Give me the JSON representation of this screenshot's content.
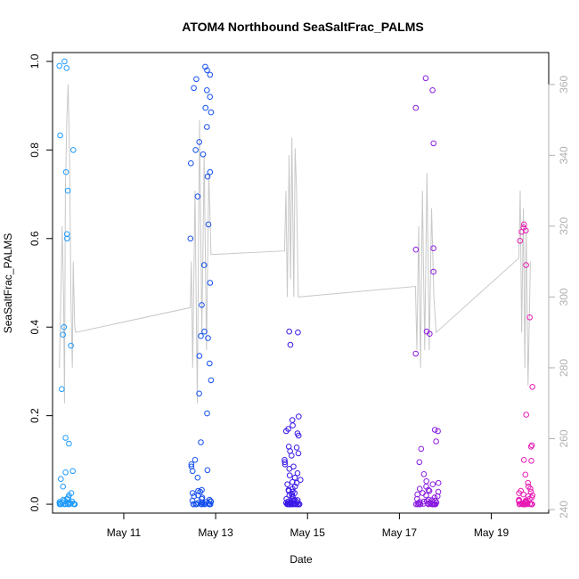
{
  "chart_data": {
    "type": "scatter",
    "title": "ATOM4 Northbound SeaSaltFrac_PALMS",
    "xlabel": "Date",
    "ylabel": "SeaSaltFrac_PALMS",
    "x_unit": "days (May day-of-month)",
    "xlim": [
      9.45,
      20.25
    ],
    "ylim": [
      -0.02,
      1.02
    ],
    "y2lim": [
      239,
      369
    ],
    "x_ticks": [
      11,
      13,
      15,
      17,
      19
    ],
    "x_tick_labels": [
      "May 11",
      "May 13",
      "May 15",
      "May 17",
      "May 19"
    ],
    "y_ticks": [
      0.0,
      0.2,
      0.4,
      0.6,
      0.8,
      1.0
    ],
    "y_tick_labels": [
      "0.0",
      "0.2",
      "0.4",
      "0.6",
      "0.8",
      "1.0"
    ],
    "y2_ticks": [
      240,
      260,
      280,
      300,
      320,
      340,
      360
    ],
    "y2_tick_labels": [
      "240",
      "260",
      "280",
      "300",
      "320",
      "340",
      "360"
    ],
    "flights": [
      {
        "day_start": 9.6,
        "day_end": 9.95,
        "color": "#1E9BFF",
        "fractions": [
          0.99,
          0.985,
          1.0,
          0.833,
          0.8,
          0.75,
          0.708,
          0.61,
          0.6,
          0.4,
          0.383,
          0.358,
          0.26,
          0.15,
          0.137,
          0.075,
          0.072,
          0.057,
          0.04,
          0.025,
          0.02,
          0.015,
          0.012,
          0.01,
          0.008,
          0.006,
          0.005,
          0.004,
          0.003,
          0.002,
          0.002,
          0.001,
          0.001,
          0.0,
          0.0,
          0.0,
          0.0,
          0.0,
          0.0,
          0.0
        ],
        "line": [
          [
            9.6,
            280
          ],
          [
            9.63,
            300
          ],
          [
            9.66,
            320
          ],
          [
            9.69,
            300
          ],
          [
            9.71,
            270
          ],
          [
            9.73,
            330
          ],
          [
            9.76,
            350
          ],
          [
            9.79,
            360
          ],
          [
            9.82,
            340
          ],
          [
            9.85,
            300
          ],
          [
            9.88,
            280
          ],
          [
            9.9,
            310
          ],
          [
            9.93,
            292
          ],
          [
            9.95,
            290
          ],
          [
            12.45,
            297
          ],
          [
            12.47,
            310
          ],
          [
            12.5,
            280
          ],
          [
            12.55,
            330
          ],
          [
            12.6,
            270
          ],
          [
            12.65,
            350
          ],
          [
            12.7,
            290
          ],
          [
            12.75,
            340
          ],
          [
            12.8,
            285
          ],
          [
            12.85,
            335
          ],
          [
            12.9,
            312
          ],
          [
            14.5,
            313
          ],
          [
            14.53,
            330
          ],
          [
            14.56,
            300
          ],
          [
            14.6,
            340
          ],
          [
            14.63,
            305
          ],
          [
            14.66,
            345
          ],
          [
            14.7,
            300
          ],
          [
            14.73,
            342
          ],
          [
            14.76,
            330
          ],
          [
            14.8,
            300
          ],
          [
            17.35,
            303
          ],
          [
            17.38,
            285
          ],
          [
            17.42,
            320
          ],
          [
            17.46,
            280
          ],
          [
            17.5,
            330
          ],
          [
            17.55,
            285
          ],
          [
            17.6,
            335
          ],
          [
            17.65,
            285
          ],
          [
            17.7,
            325
          ],
          [
            17.75,
            300
          ],
          [
            17.8,
            290
          ],
          [
            19.6,
            311
          ],
          [
            19.63,
            330
          ],
          [
            19.66,
            290
          ],
          [
            19.7,
            325
          ],
          [
            19.73,
            280
          ],
          [
            19.76,
            320
          ],
          [
            19.8,
            275
          ],
          [
            19.85,
            310
          ]
        ]
      },
      {
        "day_start": 12.45,
        "day_end": 12.9,
        "color": "#1550F0",
        "fractions": [
          0.988,
          0.98,
          0.97,
          0.96,
          0.94,
          0.935,
          0.92,
          0.895,
          0.885,
          0.852,
          0.818,
          0.8,
          0.79,
          0.77,
          0.75,
          0.74,
          0.695,
          0.632,
          0.6,
          0.54,
          0.5,
          0.45,
          0.39,
          0.38,
          0.375,
          0.335,
          0.318,
          0.28,
          0.25,
          0.205,
          0.14,
          0.1,
          0.09,
          0.085,
          0.077,
          0.075,
          0.06,
          0.032,
          0.03,
          0.028,
          0.025,
          0.02,
          0.018,
          0.015,
          0.012,
          0.01,
          0.008,
          0.007,
          0.006,
          0.005,
          0.004,
          0.003,
          0.002,
          0.001,
          0.001,
          0.0,
          0.0,
          0.0,
          0.0,
          0.0,
          0.0,
          0.0,
          0.0,
          0.0,
          0.0
        ]
      },
      {
        "day_start": 14.5,
        "day_end": 14.85,
        "color": "#3A18E8",
        "fractions": [
          0.39,
          0.388,
          0.36,
          0.198,
          0.19,
          0.178,
          0.17,
          0.165,
          0.16,
          0.155,
          0.13,
          0.128,
          0.12,
          0.115,
          0.11,
          0.1,
          0.095,
          0.09,
          0.085,
          0.08,
          0.07,
          0.065,
          0.06,
          0.055,
          0.05,
          0.048,
          0.045,
          0.04,
          0.035,
          0.032,
          0.03,
          0.028,
          0.025,
          0.022,
          0.02,
          0.018,
          0.015,
          0.012,
          0.01,
          0.009,
          0.008,
          0.007,
          0.006,
          0.005,
          0.004,
          0.003,
          0.002,
          0.002,
          0.001,
          0.001,
          0.0,
          0.0,
          0.0,
          0.0,
          0.0,
          0.0,
          0.0,
          0.0,
          0.0,
          0.0,
          0.0,
          0.0,
          0.0,
          0.0,
          0.0
        ]
      },
      {
        "day_start": 17.35,
        "day_end": 17.85,
        "color": "#8A1CE0",
        "fractions": [
          0.962,
          0.935,
          0.895,
          0.815,
          0.578,
          0.575,
          0.525,
          0.39,
          0.385,
          0.34,
          0.168,
          0.165,
          0.142,
          0.125,
          0.095,
          0.068,
          0.052,
          0.048,
          0.045,
          0.04,
          0.035,
          0.032,
          0.03,
          0.028,
          0.025,
          0.022,
          0.02,
          0.018,
          0.015,
          0.012,
          0.01,
          0.009,
          0.008,
          0.007,
          0.006,
          0.005,
          0.004,
          0.003,
          0.002,
          0.002,
          0.001,
          0.001,
          0.0,
          0.0,
          0.0,
          0.0,
          0.0,
          0.0,
          0.0,
          0.0,
          0.0,
          0.0,
          0.0,
          0.0,
          0.0
        ]
      },
      {
        "day_start": 19.6,
        "day_end": 19.9,
        "color": "#E81CB4",
        "fractions": [
          0.632,
          0.625,
          0.618,
          0.615,
          0.595,
          0.54,
          0.422,
          0.265,
          0.202,
          0.133,
          0.13,
          0.1,
          0.098,
          0.067,
          0.048,
          0.04,
          0.035,
          0.03,
          0.028,
          0.025,
          0.022,
          0.02,
          0.018,
          0.015,
          0.012,
          0.01,
          0.009,
          0.008,
          0.007,
          0.006,
          0.005,
          0.004,
          0.003,
          0.002,
          0.002,
          0.001,
          0.001,
          0.0,
          0.0,
          0.0,
          0.0,
          0.0,
          0.0,
          0.0,
          0.0,
          0.0,
          0.0,
          0.0,
          0.0,
          0.0
        ]
      }
    ]
  }
}
